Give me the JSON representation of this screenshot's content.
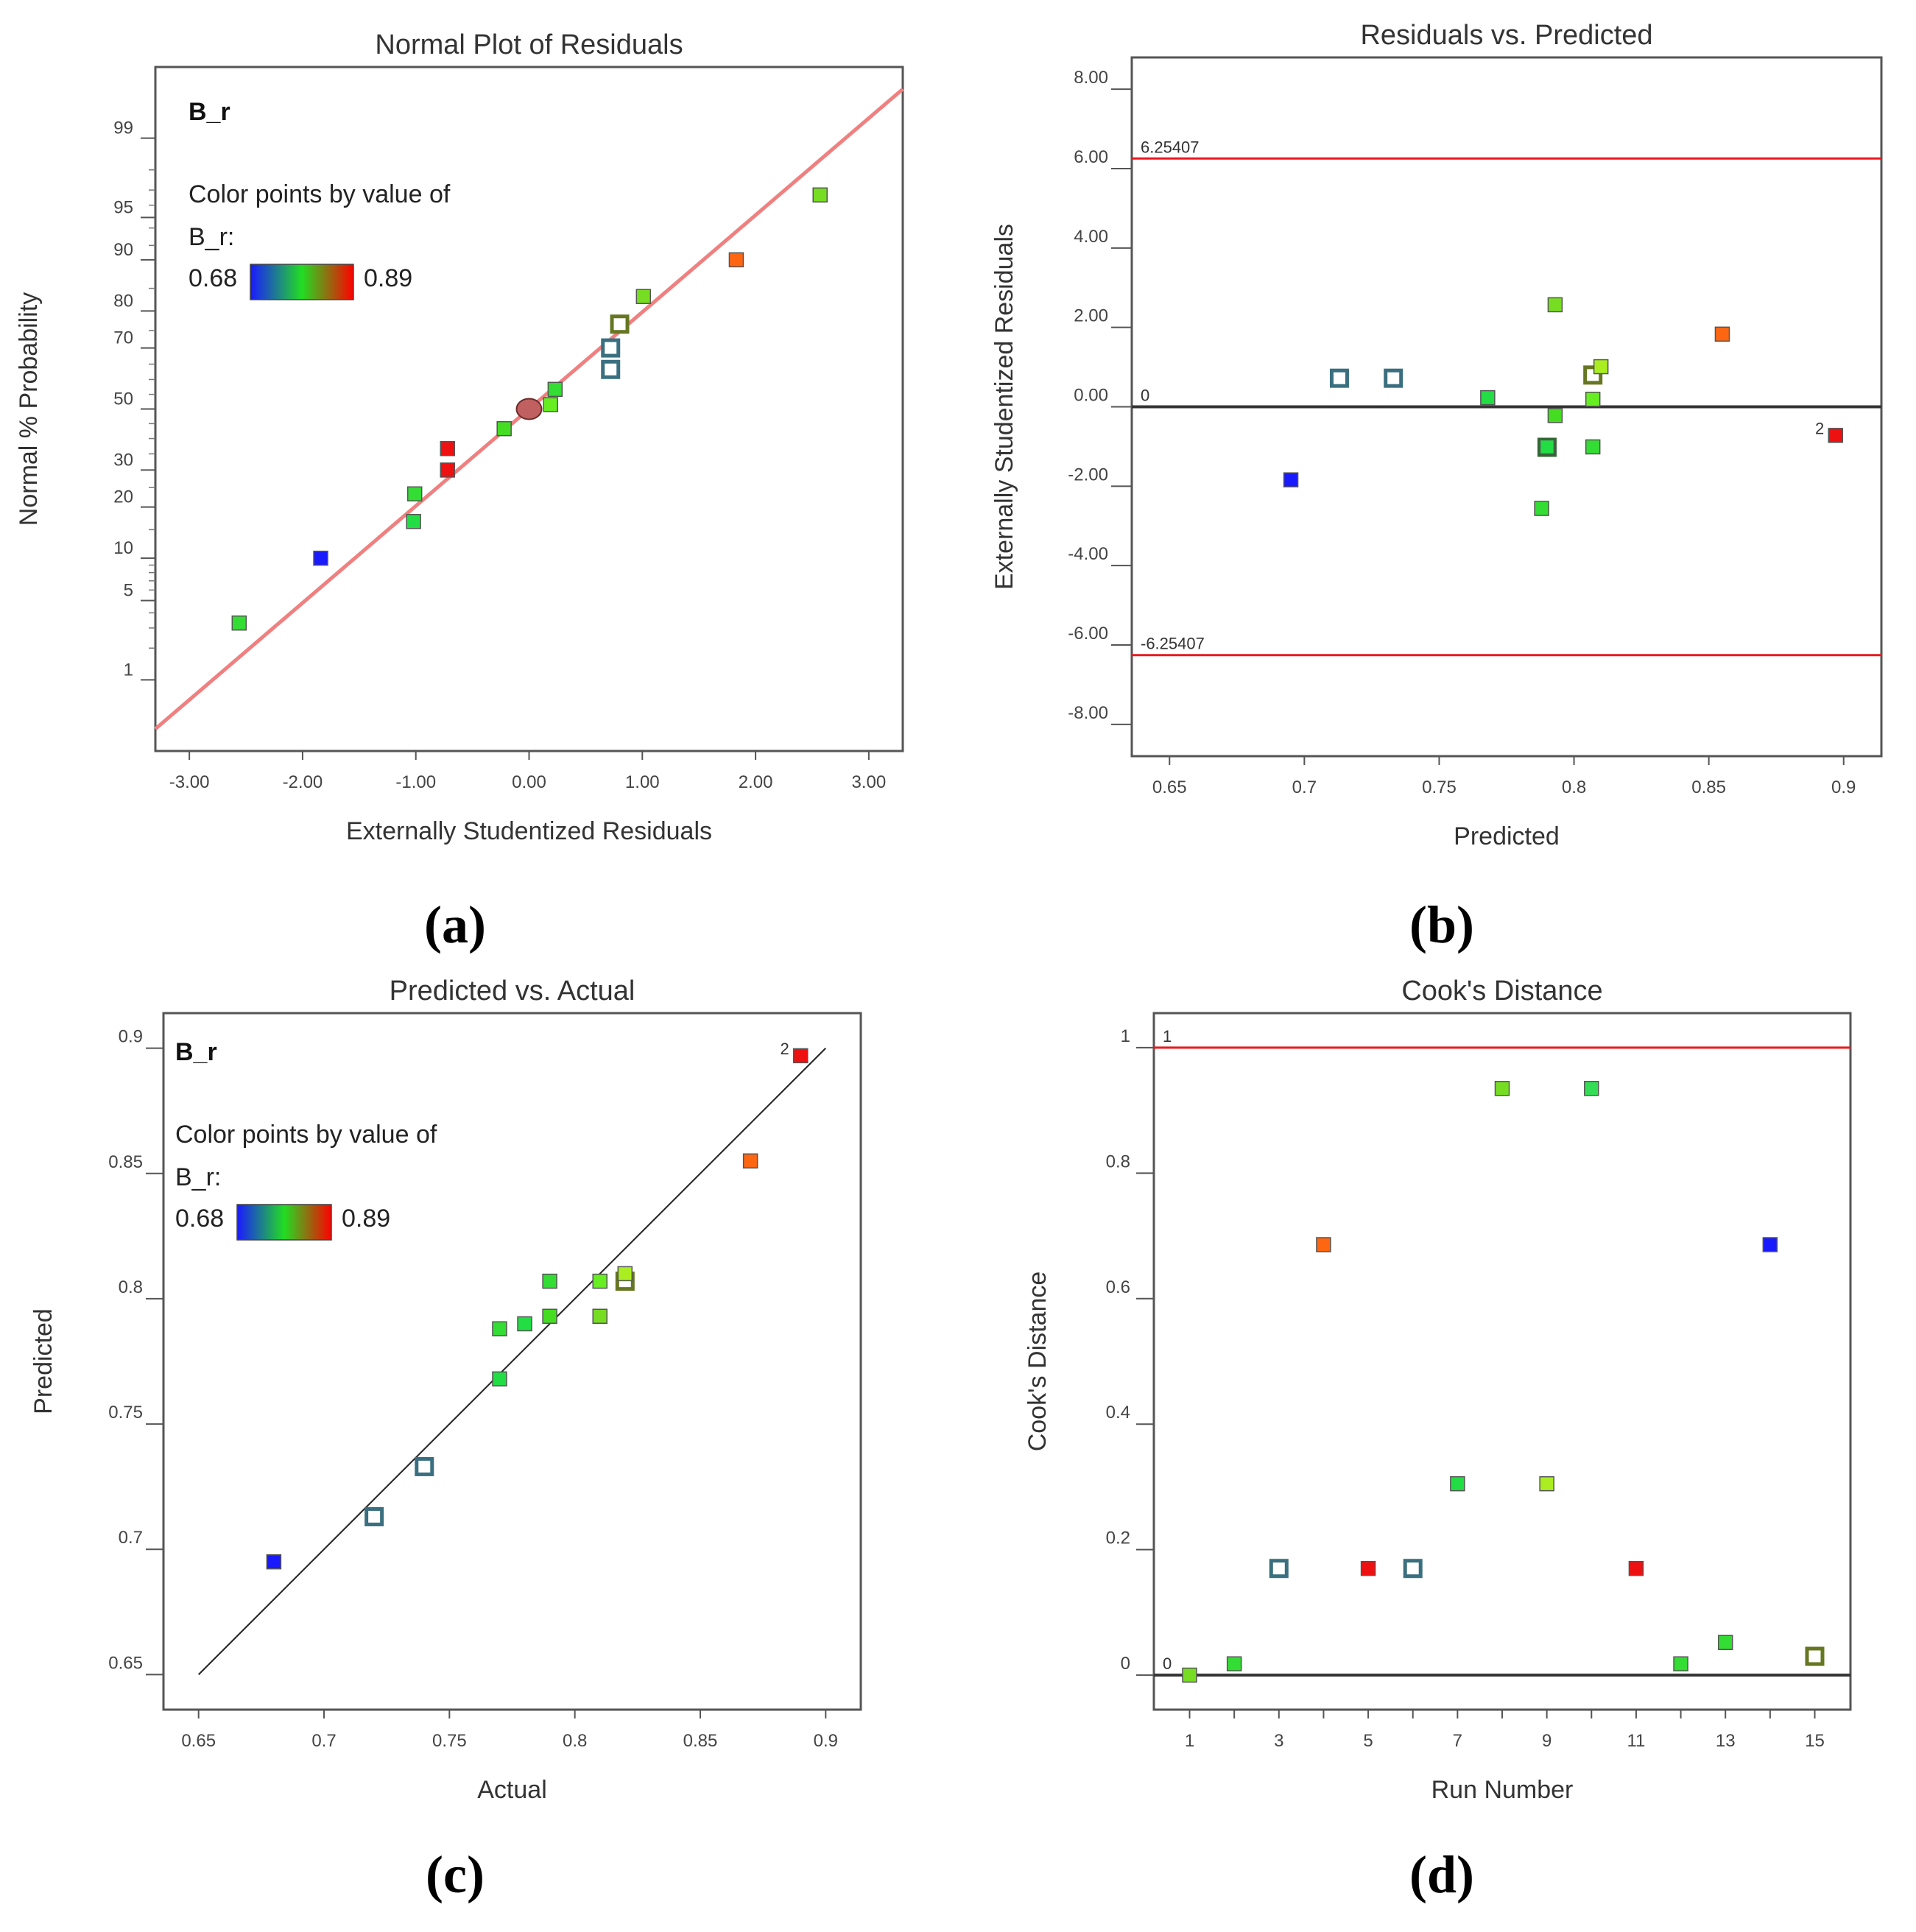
{
  "colorscale": {
    "low": "#1a1aff",
    "mid": "#22dd22",
    "high": "#ff0000"
  },
  "chart_data": [
    {
      "id": "a",
      "caption": "(a)",
      "type": "scatter",
      "title": "Normal Plot of Residuals",
      "xlabel": "Externally Studentized Residuals",
      "ylabel": "Normal % Probability",
      "xlim": [
        -3.0,
        3.0
      ],
      "xticks": [
        "-3.00",
        "-2.00",
        "-1.00",
        "0.00",
        "1.00",
        "2.00",
        "3.00"
      ],
      "yticks": [
        "1",
        "5",
        "10",
        "20",
        "30",
        "50",
        "70",
        "80",
        "90",
        "95",
        "99"
      ],
      "legend": {
        "response": "B_r",
        "heading": "Color points by value of",
        "var": "B_r:",
        "min": "0.68",
        "max": "0.89"
      },
      "reference_line": {
        "from": [
          -3.3,
          0.3
        ],
        "to": [
          3.3,
          99.7
        ]
      },
      "points": [
        {
          "x": -2.56,
          "p": 3.3,
          "c": "#33dd33",
          "hollow": false
        },
        {
          "x": -1.84,
          "p": 10.0,
          "c": "#1a1aff",
          "hollow": false
        },
        {
          "x": -1.02,
          "p": 16.7,
          "c": "#22dd44",
          "hollow": false
        },
        {
          "x": -1.01,
          "p": 23.3,
          "c": "#33dd33",
          "hollow": false
        },
        {
          "x": -0.72,
          "p": 30.0,
          "c": "#ee1111",
          "hollow": false
        },
        {
          "x": -0.72,
          "p": 36.7,
          "c": "#ee1111",
          "hollow": false
        },
        {
          "x": -0.22,
          "p": 43.3,
          "c": "#44dd22",
          "hollow": false
        },
        {
          "x": 0.0,
          "p": 50.0,
          "c": "#c06060",
          "hollow": false,
          "center": true
        },
        {
          "x": 0.19,
          "p": 51.5,
          "c": "#66ee22",
          "hollow": false
        },
        {
          "x": 0.23,
          "p": 56.7,
          "c": "#33dd33",
          "hollow": false
        },
        {
          "x": 0.72,
          "p": 63.3,
          "c": "#3a6f80",
          "hollow": true
        },
        {
          "x": 0.72,
          "p": 70.0,
          "c": "#3a6f80",
          "hollow": true
        },
        {
          "x": 0.8,
          "p": 76.7,
          "c": "#667722",
          "hollow": true
        },
        {
          "x": 1.01,
          "p": 83.3,
          "c": "#77dd22",
          "hollow": false
        },
        {
          "x": 1.83,
          "p": 90.0,
          "c": "#ff6611",
          "hollow": false
        },
        {
          "x": 2.57,
          "p": 96.7,
          "c": "#77dd22",
          "hollow": false
        }
      ]
    },
    {
      "id": "b",
      "caption": "(b)",
      "type": "scatter",
      "title": "Residuals vs. Predicted",
      "xlabel": "Predicted",
      "ylabel": "Externally Studentized Residuals",
      "xlim": [
        0.636,
        0.914
      ],
      "ylim": [
        -8.8,
        8.8
      ],
      "xticks": [
        "0.65",
        "0.7",
        "0.75",
        "0.8",
        "0.85",
        "0.9"
      ],
      "yticks": [
        "-8.00",
        "-6.00",
        "-4.00",
        "-2.00",
        "0.00",
        "2.00",
        "4.00",
        "6.00",
        "8.00"
      ],
      "limits": [
        {
          "value": 6.25407,
          "label": "6.25407"
        },
        {
          "value": -6.25407,
          "label": "-6.25407"
        }
      ],
      "zero_label": "0",
      "points": [
        {
          "x": 0.695,
          "y": -1.84,
          "c": "#1a1aff",
          "hollow": false
        },
        {
          "x": 0.713,
          "y": 0.72,
          "c": "#3a6f80",
          "hollow": true
        },
        {
          "x": 0.733,
          "y": 0.72,
          "c": "#3a6f80",
          "hollow": true
        },
        {
          "x": 0.768,
          "y": 0.23,
          "c": "#22dd44",
          "hollow": false
        },
        {
          "x": 0.788,
          "y": -2.56,
          "c": "#33dd33",
          "hollow": false
        },
        {
          "x": 0.79,
          "y": -1.02,
          "c": "#336633",
          "hollow": true
        },
        {
          "x": 0.79,
          "y": -1.01,
          "c": "#22dd44",
          "hollow": false
        },
        {
          "x": 0.793,
          "y": 2.57,
          "c": "#77dd22",
          "hollow": false
        },
        {
          "x": 0.793,
          "y": -0.22,
          "c": "#44dd22",
          "hollow": false
        },
        {
          "x": 0.807,
          "y": 0.8,
          "c": "#667722",
          "hollow": true
        },
        {
          "x": 0.807,
          "y": 0.19,
          "c": "#66ee22",
          "hollow": false
        },
        {
          "x": 0.807,
          "y": -1.01,
          "c": "#33dd33",
          "hollow": false
        },
        {
          "x": 0.81,
          "y": 1.01,
          "c": "#aaee22",
          "hollow": false
        },
        {
          "x": 0.855,
          "y": 1.83,
          "c": "#ff6611",
          "hollow": false
        },
        {
          "x": 0.897,
          "y": -0.72,
          "c": "#ee1111",
          "hollow": false,
          "tag": "2"
        }
      ]
    },
    {
      "id": "c",
      "caption": "(c)",
      "type": "scatter",
      "title": "Predicted vs. Actual",
      "xlabel": "Actual",
      "ylabel": "Predicted",
      "xlim": [
        0.636,
        0.914
      ],
      "ylim": [
        0.636,
        0.914
      ],
      "xticks": [
        "0.65",
        "0.7",
        "0.75",
        "0.8",
        "0.85",
        "0.9"
      ],
      "yticks": [
        "0.65",
        "0.7",
        "0.75",
        "0.8",
        "0.85",
        "0.9"
      ],
      "legend": {
        "response": "B_r",
        "heading": "Color points by value of",
        "var": "B_r:",
        "min": "0.68",
        "max": "0.89"
      },
      "reference_line": {
        "from": [
          0.65,
          0.65
        ],
        "to": [
          0.9,
          0.9
        ]
      },
      "points": [
        {
          "x": 0.68,
          "y": 0.695,
          "c": "#1a1aff",
          "hollow": false
        },
        {
          "x": 0.72,
          "y": 0.713,
          "c": "#3a6f80",
          "hollow": true
        },
        {
          "x": 0.74,
          "y": 0.733,
          "c": "#3a6f80",
          "hollow": true
        },
        {
          "x": 0.77,
          "y": 0.768,
          "c": "#22dd44",
          "hollow": false
        },
        {
          "x": 0.77,
          "y": 0.788,
          "c": "#33dd33",
          "hollow": false
        },
        {
          "x": 0.78,
          "y": 0.79,
          "c": "#22dd44",
          "hollow": false
        },
        {
          "x": 0.79,
          "y": 0.793,
          "c": "#44dd22",
          "hollow": false
        },
        {
          "x": 0.79,
          "y": 0.807,
          "c": "#33dd33",
          "hollow": false
        },
        {
          "x": 0.81,
          "y": 0.807,
          "c": "#66ee22",
          "hollow": false
        },
        {
          "x": 0.81,
          "y": 0.793,
          "c": "#77dd22",
          "hollow": false
        },
        {
          "x": 0.82,
          "y": 0.807,
          "c": "#667722",
          "hollow": true
        },
        {
          "x": 0.82,
          "y": 0.81,
          "c": "#aaee22",
          "hollow": false
        },
        {
          "x": 0.87,
          "y": 0.855,
          "c": "#ff6611",
          "hollow": false
        },
        {
          "x": 0.89,
          "y": 0.897,
          "c": "#ee1111",
          "hollow": false,
          "tag": "2"
        }
      ]
    },
    {
      "id": "d",
      "caption": "(d)",
      "type": "scatter",
      "title": "Cook's Distance",
      "xlabel": "Run Number",
      "ylabel": "Cook's Distance",
      "xlim": [
        0.2,
        15.8
      ],
      "ylim": [
        -0.055,
        1.055
      ],
      "xticks": [
        "1",
        "3",
        "5",
        "7",
        "9",
        "11",
        "13",
        "15"
      ],
      "yticks": [
        "0",
        "0.2",
        "0.4",
        "0.6",
        "0.8",
        "1"
      ],
      "limits": [
        {
          "value": 1.0,
          "label": "1"
        }
      ],
      "zero_label": "0",
      "points": [
        {
          "x": 1,
          "y": 0.0,
          "c": "#77dd22",
          "hollow": false
        },
        {
          "x": 2,
          "y": 0.018,
          "c": "#33dd33",
          "hollow": false
        },
        {
          "x": 3,
          "y": 0.17,
          "c": "#3a6f80",
          "hollow": true
        },
        {
          "x": 4,
          "y": 0.686,
          "c": "#ff6611",
          "hollow": false
        },
        {
          "x": 5,
          "y": 0.17,
          "c": "#ee1111",
          "hollow": false
        },
        {
          "x": 6,
          "y": 0.17,
          "c": "#3a6f80",
          "hollow": true
        },
        {
          "x": 7,
          "y": 0.305,
          "c": "#22dd44",
          "hollow": false
        },
        {
          "x": 8,
          "y": 0.935,
          "c": "#77dd22",
          "hollow": false
        },
        {
          "x": 9,
          "y": 0.305,
          "c": "#aaee22",
          "hollow": false
        },
        {
          "x": 10,
          "y": 0.935,
          "c": "#33dd55",
          "hollow": false
        },
        {
          "x": 11,
          "y": 0.17,
          "c": "#ee1111",
          "hollow": false
        },
        {
          "x": 12,
          "y": 0.018,
          "c": "#33dd33",
          "hollow": false
        },
        {
          "x": 13,
          "y": 0.052,
          "c": "#33dd33",
          "hollow": false
        },
        {
          "x": 14,
          "y": 0.686,
          "c": "#1a1aff",
          "hollow": false
        },
        {
          "x": 15,
          "y": 0.03,
          "c": "#667722",
          "hollow": true
        }
      ]
    }
  ]
}
